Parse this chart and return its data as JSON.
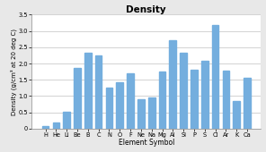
{
  "title": "Density",
  "xlabel": "Element Symbol",
  "ylabel": "Density (g/cm³ at 20 deg C)",
  "categories": [
    "H",
    "He",
    "Li",
    "Be",
    "B",
    "C",
    "N",
    "O",
    "F",
    "Ne",
    "Na",
    "Mg",
    "Al",
    "Si",
    "P",
    "S",
    "Cl",
    "Ar",
    "K",
    "Ca"
  ],
  "values": [
    0.09,
    0.18,
    0.53,
    1.85,
    2.34,
    2.26,
    1.25,
    1.43,
    1.7,
    0.9,
    0.97,
    1.74,
    2.7,
    2.33,
    1.82,
    2.07,
    3.17,
    1.78,
    0.86,
    1.55
  ],
  "bar_color": "#74aede",
  "ylim": [
    0,
    3.5
  ],
  "yticks": [
    0,
    0.5,
    1.0,
    1.5,
    2.0,
    2.5,
    3.0,
    3.5
  ],
  "background_color": "#e8e8e8",
  "plot_background": "#ffffff",
  "title_fontsize": 7.5,
  "axis_label_fontsize": 5.5,
  "tick_fontsize": 4.8,
  "bar_width": 0.65
}
